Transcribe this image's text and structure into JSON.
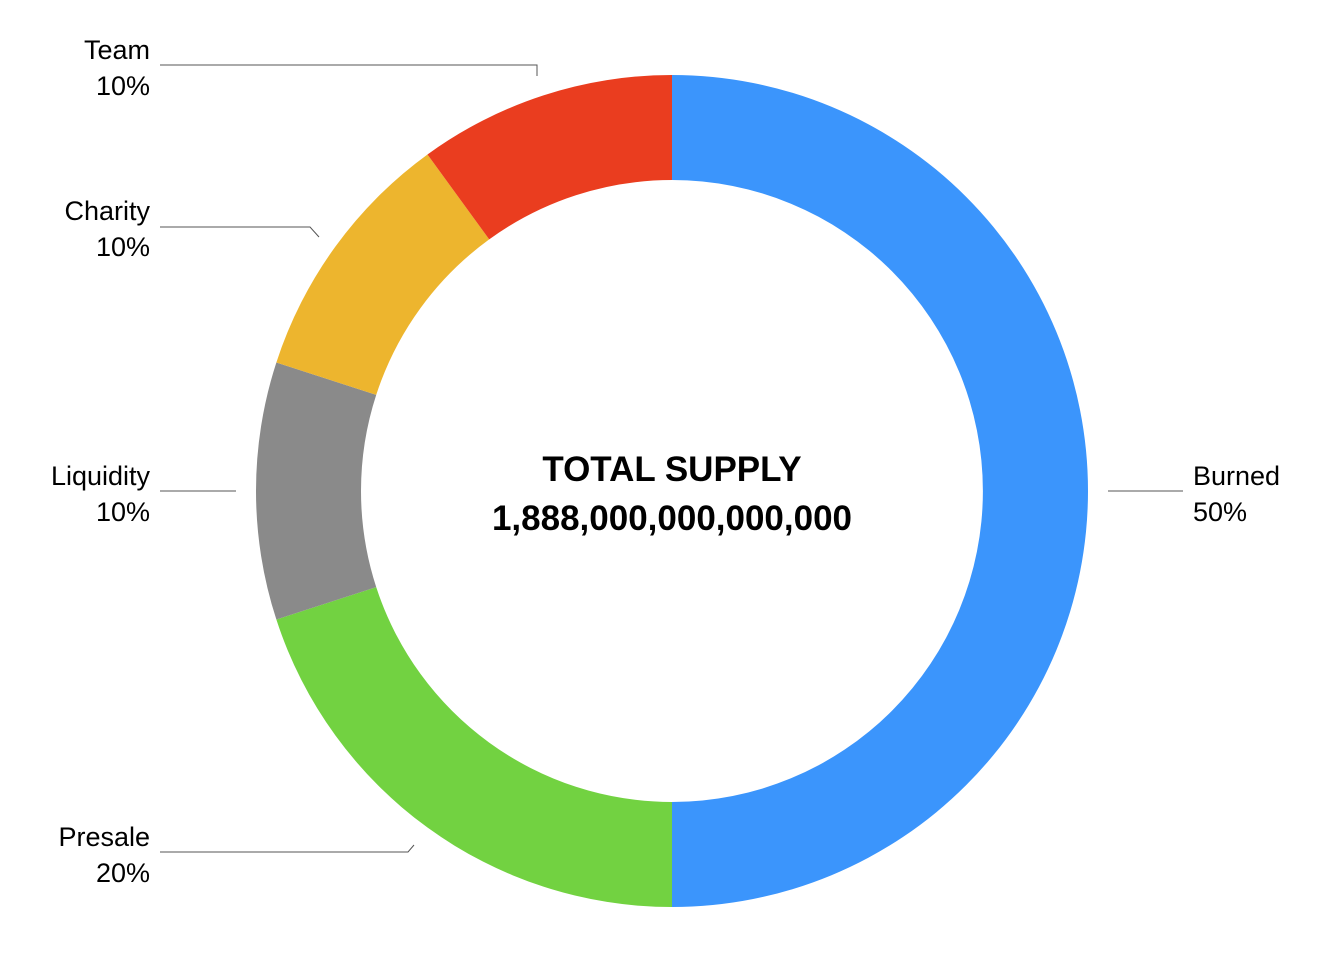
{
  "chart_data": {
    "type": "pie",
    "variant": "donut",
    "center_title": "TOTAL SUPPLY",
    "center_value": "1,888,000,000,000,000",
    "slices": [
      {
        "label": "Burned",
        "value": 50,
        "value_label": "50%",
        "color": "#3b95fc"
      },
      {
        "label": "Presale",
        "value": 20,
        "value_label": "20%",
        "color": "#72d241"
      },
      {
        "label": "Liquidity",
        "value": 10,
        "value_label": "10%",
        "color": "#8a8a8a"
      },
      {
        "label": "Charity",
        "value": 10,
        "value_label": "10%",
        "color": "#edb52e"
      },
      {
        "label": "Team",
        "value": 10,
        "value_label": "10%",
        "color": "#ea3d1f"
      }
    ]
  }
}
